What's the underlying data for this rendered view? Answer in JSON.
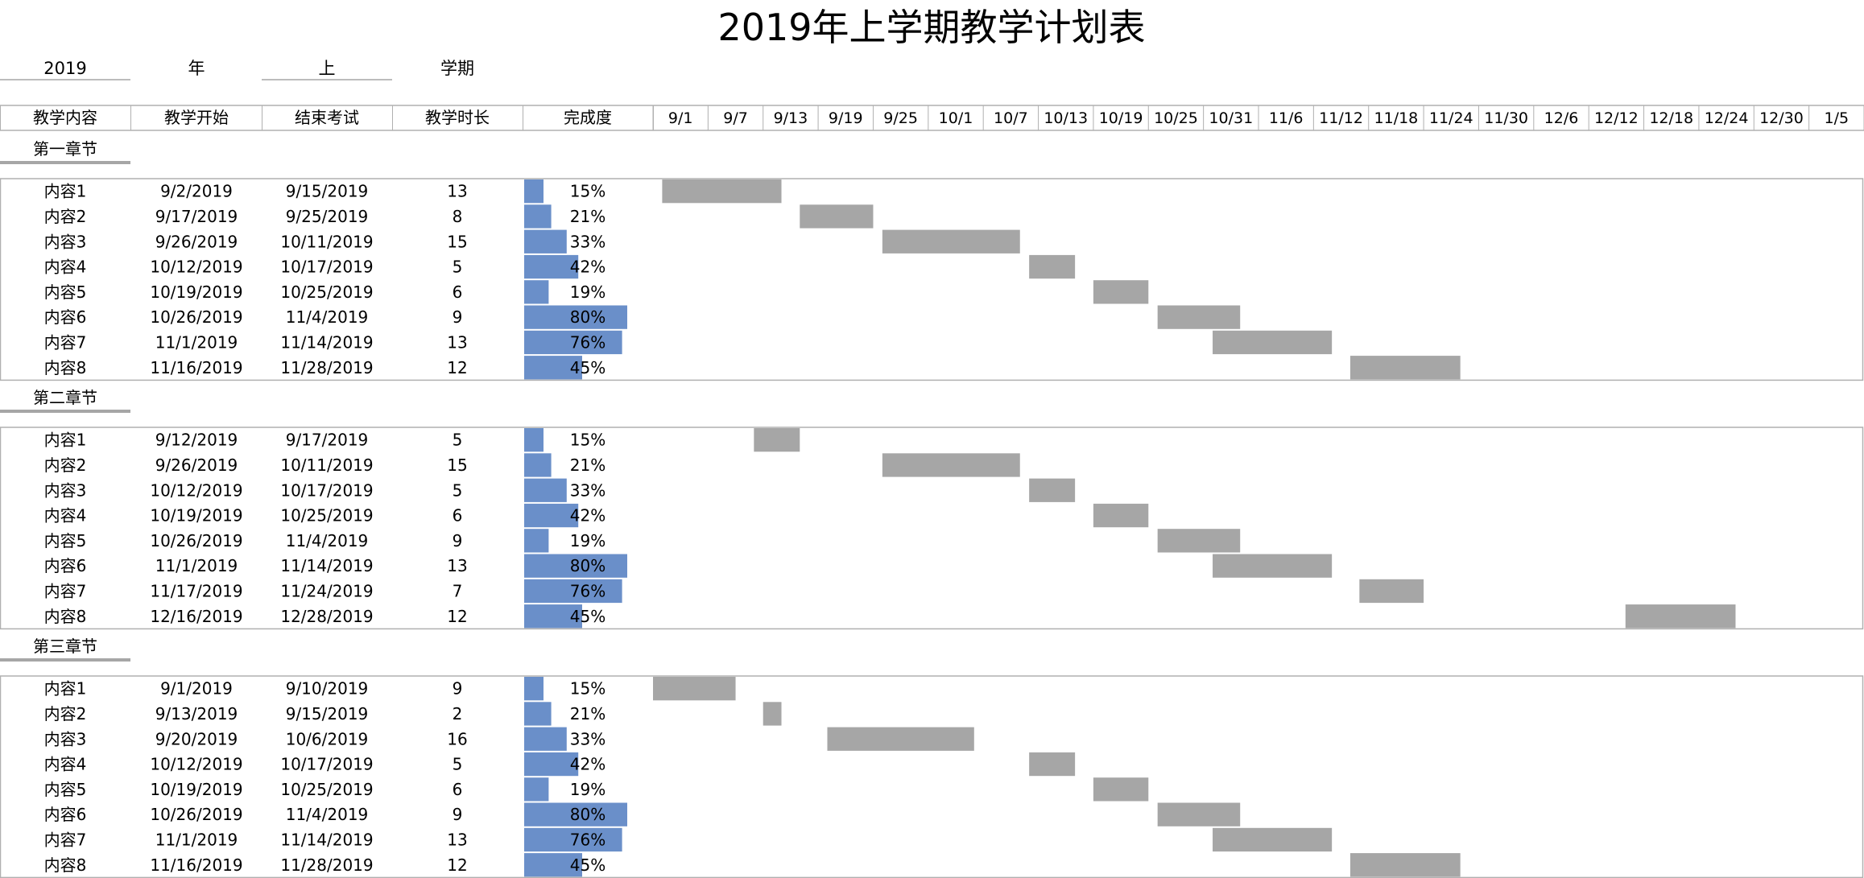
{
  "title": "2019年上学期教学计划表",
  "header_fields": {
    "year_value": "2019",
    "year_label": "年",
    "term_value": "上",
    "term_label": "学期"
  },
  "colors": {
    "progress_bar": "#6a8fc9",
    "gantt_bar": "#a6a6a6",
    "grid_line": "#b0b0b0",
    "section_underline": "#a6a6a6"
  },
  "chart_data": {
    "type": "table",
    "columns": [
      "教学内容",
      "教学开始",
      "结束考试",
      "教学时长",
      "完成度"
    ],
    "timeline_labels": [
      "9/1",
      "9/7",
      "9/13",
      "9/19",
      "9/25",
      "10/1",
      "10/7",
      "10/13",
      "10/19",
      "10/25",
      "10/31",
      "11/6",
      "11/12",
      "11/18",
      "11/24",
      "11/30",
      "12/6",
      "12/12",
      "12/18",
      "12/24",
      "12/30",
      "1/5"
    ],
    "sections": [
      {
        "name": "第一章节",
        "rows": [
          {
            "content": "内容1",
            "start": "9/2/2019",
            "end": "9/15/2019",
            "duration": 13,
            "progress": "15%",
            "progress_value": 0.15
          },
          {
            "content": "内容2",
            "start": "9/17/2019",
            "end": "9/25/2019",
            "duration": 8,
            "progress": "21%",
            "progress_value": 0.21
          },
          {
            "content": "内容3",
            "start": "9/26/2019",
            "end": "10/11/2019",
            "duration": 15,
            "progress": "33%",
            "progress_value": 0.33
          },
          {
            "content": "内容4",
            "start": "10/12/2019",
            "end": "10/17/2019",
            "duration": 5,
            "progress": "42%",
            "progress_value": 0.42
          },
          {
            "content": "内容5",
            "start": "10/19/2019",
            "end": "10/25/2019",
            "duration": 6,
            "progress": "19%",
            "progress_value": 0.19
          },
          {
            "content": "内容6",
            "start": "10/26/2019",
            "end": "11/4/2019",
            "duration": 9,
            "progress": "80%",
            "progress_value": 0.8
          },
          {
            "content": "内容7",
            "start": "11/1/2019",
            "end": "11/14/2019",
            "duration": 13,
            "progress": "76%",
            "progress_value": 0.76
          },
          {
            "content": "内容8",
            "start": "11/16/2019",
            "end": "11/28/2019",
            "duration": 12,
            "progress": "45%",
            "progress_value": 0.45
          }
        ]
      },
      {
        "name": "第二章节",
        "rows": [
          {
            "content": "内容1",
            "start": "9/12/2019",
            "end": "9/17/2019",
            "duration": 5,
            "progress": "15%",
            "progress_value": 0.15
          },
          {
            "content": "内容2",
            "start": "9/26/2019",
            "end": "10/11/2019",
            "duration": 15,
            "progress": "21%",
            "progress_value": 0.21
          },
          {
            "content": "内容3",
            "start": "10/12/2019",
            "end": "10/17/2019",
            "duration": 5,
            "progress": "33%",
            "progress_value": 0.33
          },
          {
            "content": "内容4",
            "start": "10/19/2019",
            "end": "10/25/2019",
            "duration": 6,
            "progress": "42%",
            "progress_value": 0.42
          },
          {
            "content": "内容5",
            "start": "10/26/2019",
            "end": "11/4/2019",
            "duration": 9,
            "progress": "19%",
            "progress_value": 0.19
          },
          {
            "content": "内容6",
            "start": "11/1/2019",
            "end": "11/14/2019",
            "duration": 13,
            "progress": "80%",
            "progress_value": 0.8
          },
          {
            "content": "内容7",
            "start": "11/17/2019",
            "end": "11/24/2019",
            "duration": 7,
            "progress": "76%",
            "progress_value": 0.76
          },
          {
            "content": "内容8",
            "start": "12/16/2019",
            "end": "12/28/2019",
            "duration": 12,
            "progress": "45%",
            "progress_value": 0.45
          }
        ]
      },
      {
        "name": "第三章节",
        "rows": [
          {
            "content": "内容1",
            "start": "9/1/2019",
            "end": "9/10/2019",
            "duration": 9,
            "progress": "15%",
            "progress_value": 0.15
          },
          {
            "content": "内容2",
            "start": "9/13/2019",
            "end": "9/15/2019",
            "duration": 2,
            "progress": "21%",
            "progress_value": 0.21
          },
          {
            "content": "内容3",
            "start": "9/20/2019",
            "end": "10/6/2019",
            "duration": 16,
            "progress": "33%",
            "progress_value": 0.33
          },
          {
            "content": "内容4",
            "start": "10/12/2019",
            "end": "10/17/2019",
            "duration": 5,
            "progress": "42%",
            "progress_value": 0.42
          },
          {
            "content": "内容5",
            "start": "10/19/2019",
            "end": "10/25/2019",
            "duration": 6,
            "progress": "19%",
            "progress_value": 0.19
          },
          {
            "content": "内容6",
            "start": "10/26/2019",
            "end": "11/4/2019",
            "duration": 9,
            "progress": "80%",
            "progress_value": 0.8
          },
          {
            "content": "内容7",
            "start": "11/1/2019",
            "end": "11/14/2019",
            "duration": 13,
            "progress": "76%",
            "progress_value": 0.76
          },
          {
            "content": "内容8",
            "start": "11/16/2019",
            "end": "11/28/2019",
            "duration": 12,
            "progress": "45%",
            "progress_value": 0.45
          }
        ]
      }
    ]
  }
}
